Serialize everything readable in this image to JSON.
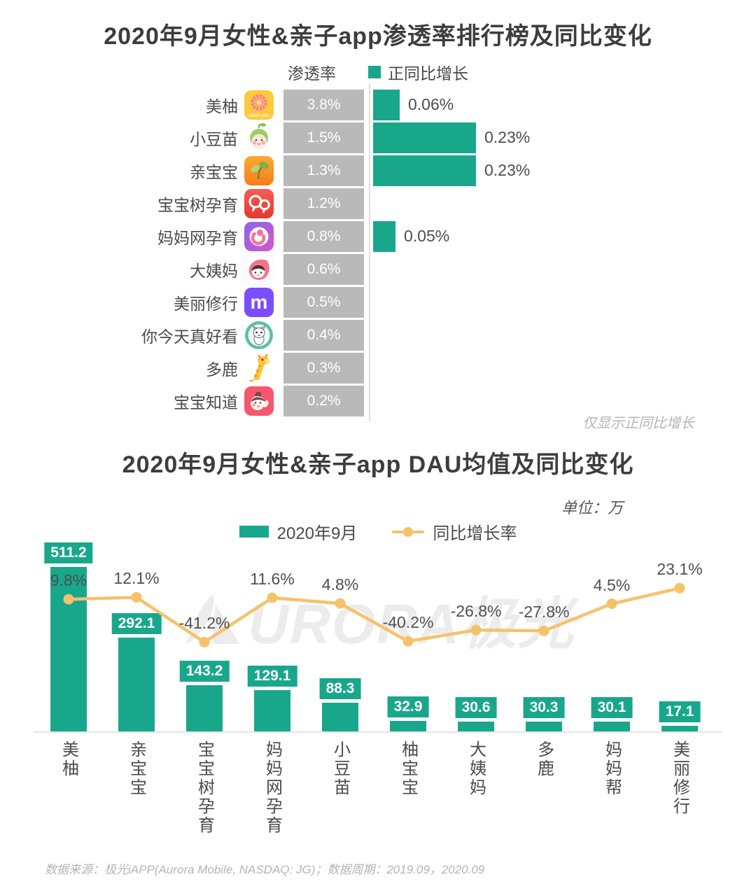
{
  "colors": {
    "teal": "#19A78C",
    "bar_gray": "#B9B9B9",
    "line_yellow": "#F5C26B",
    "title_text": "#3D3D3D",
    "body_text": "#4A4A4A",
    "muted_text": "#B5B5B5",
    "axis_gray": "#DEDEDE",
    "watermark_gray": "#ECECEC"
  },
  "chart2": {
    "unit_label": "单位：万",
    "watermark": "URORA极光"
  },
  "footer": {
    "text": "数据来源：极光iAPP(Aurora Mobile, NASDAQ: JG)；数据周期：2019.09，2020.09"
  },
  "chart_data": [
    {
      "type": "bar",
      "orientation": "horizontal",
      "title": "2020年9月女性&亲子app渗透率排行榜及同比变化",
      "note": "仅显示正同比增长",
      "categories": [
        "美柚",
        "小豆苗",
        "亲宝宝",
        "宝宝树孕育",
        "妈妈网孕育",
        "大姨妈",
        "美丽修行",
        "你今天真好看",
        "多鹿",
        "宝宝知道"
      ],
      "icons": [
        "meiyou-app-icon",
        "xiaodoumiao-app-icon",
        "qinbaobao-app-icon",
        "baobaoshu-yunyu-app-icon",
        "mamawang-yunyu-app-icon",
        "dayima-app-icon",
        "meilixiuxing-app-icon",
        "nijintianzhenhaokan-app-icon",
        "duolu-app-icon",
        "baobaozhidao-app-icon"
      ],
      "series": [
        {
          "name": "渗透率",
          "unit": "%",
          "values": [
            3.8,
            1.5,
            1.3,
            1.2,
            0.8,
            0.6,
            0.5,
            0.4,
            0.3,
            0.2
          ]
        },
        {
          "name": "正同比增长",
          "unit": "%",
          "values": [
            0.06,
            0.23,
            0.23,
            null,
            0.05,
            null,
            null,
            null,
            null,
            null
          ]
        }
      ],
      "legend_position": "top",
      "grid": false
    },
    {
      "type": "bar",
      "title": "2020年9月女性&亲子app DAU均值及同比变化",
      "categories": [
        "美柚",
        "亲宝宝",
        "宝宝树孕育",
        "妈妈网孕育",
        "小豆苗",
        "柚宝宝",
        "大姨妈",
        "多鹿",
        "妈妈帮",
        "美丽修行"
      ],
      "series": [
        {
          "name": "2020年9月",
          "type": "bar",
          "unit": "万",
          "values": [
            511.2,
            292.1,
            143.2,
            129.1,
            88.3,
            32.9,
            30.6,
            30.3,
            30.1,
            17.1
          ]
        },
        {
          "name": "同比增长率",
          "type": "line",
          "unit": "%",
          "values": [
            9.8,
            12.1,
            -41.2,
            11.6,
            4.8,
            -40.2,
            -26.8,
            -27.8,
            4.5,
            23.1
          ]
        }
      ],
      "legend_position": "top",
      "grid": false,
      "ylim": [
        0,
        560
      ],
      "y2lim": [
        -75,
        90
      ]
    }
  ]
}
